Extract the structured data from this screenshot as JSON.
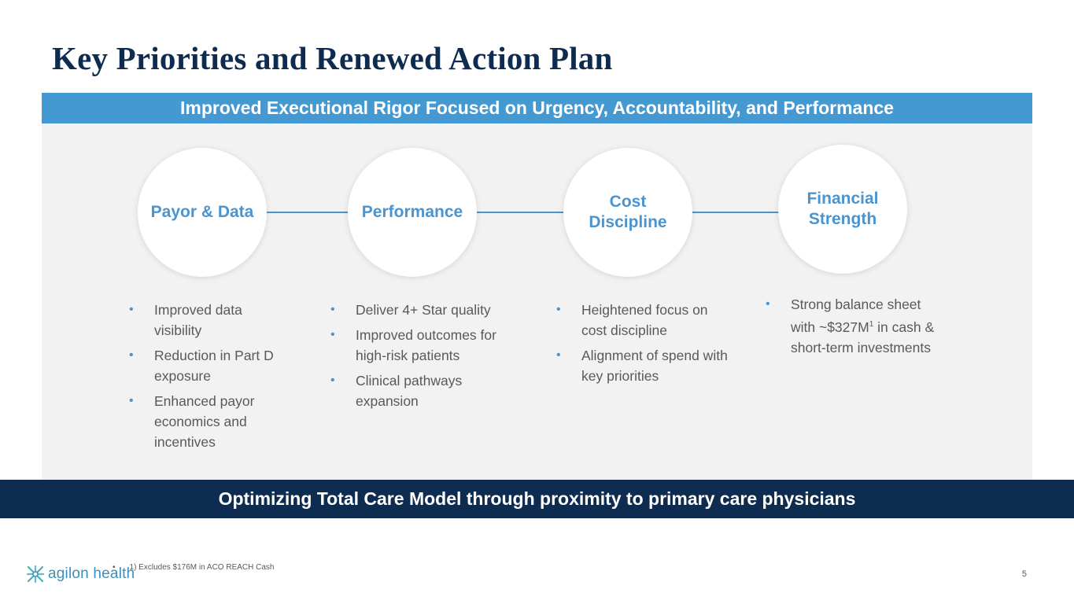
{
  "title": "Key Priorities and Renewed Action Plan",
  "banner": "Improved Executional Rigor Focused on Urgency, Accountability, and Performance",
  "pillars": [
    {
      "label": "Payor & Data",
      "bullets": [
        "Improved data visibility",
        "Reduction in Part D exposure",
        "Enhanced payor economics and incentives"
      ]
    },
    {
      "label": "Performance",
      "bullets": [
        "Deliver 4+ Star quality",
        "Improved outcomes for high-risk patients",
        "Clinical pathways expansion"
      ]
    },
    {
      "label": "Cost\nDiscipline",
      "bullets": [
        "Heightened focus on cost discipline",
        "Alignment of spend with key priorities"
      ]
    },
    {
      "label": "Financial\nStrength",
      "bullets": [
        "Strong balance sheet with ~$327M",
        "in cash & short-term investments"
      ],
      "superscript": "1"
    }
  ],
  "footer_bar": "Optimizing Total Care Model through proximity to primary care physicians",
  "footnote": "1) Excludes $176M in ACO REACH Cash",
  "footnote_bullet": "•",
  "bullet_char": "•",
  "logo_text": "agilon health",
  "page_number": "5",
  "colors": {
    "navy": "#0e2b50",
    "accent_blue": "#4a94cf",
    "banner_blue": "#4499d2",
    "logo_teal": "#3c8fb9"
  }
}
